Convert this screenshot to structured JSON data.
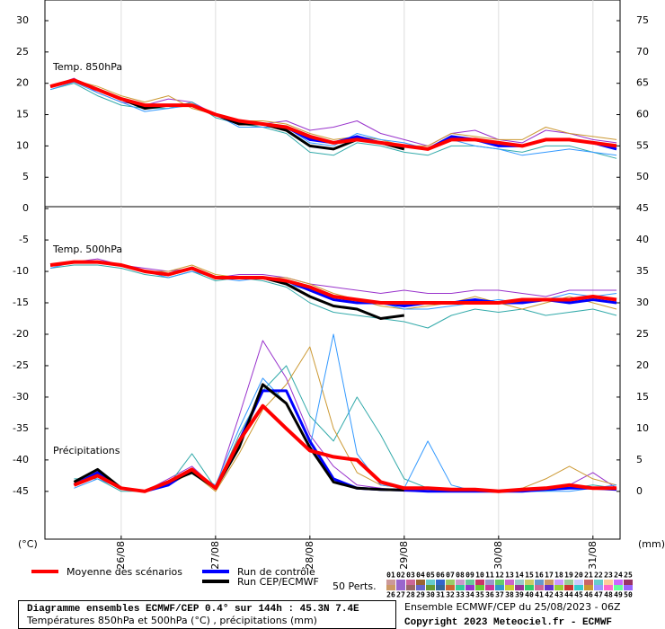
{
  "chart_data": {
    "type": "line",
    "x": [
      6,
      12,
      18,
      24,
      30,
      36,
      42,
      48,
      54,
      60,
      66,
      72,
      78,
      84,
      90,
      96,
      102,
      108,
      114,
      120,
      126,
      132,
      138,
      144,
      150
    ],
    "xlim": [
      4.6,
      150.9
    ],
    "xticks": [
      {
        "value": 24,
        "label": "26/08"
      },
      {
        "value": 48,
        "label": "27/08"
      },
      {
        "value": 72,
        "label": "28/08"
      },
      {
        "value": 96,
        "label": "29/08"
      },
      {
        "value": 120,
        "label": "30/08"
      },
      {
        "value": 144,
        "label": "31/08"
      }
    ],
    "y_unit": "(°C)",
    "y2_unit": "(mm)",
    "panels": [
      {
        "label": "Temp. 850hPa",
        "ylim": [
          0.3,
          33.3
        ],
        "yticks": [
          5,
          10,
          15,
          20,
          25,
          30
        ],
        "y2lim": [
          45.3,
          78.3
        ],
        "y2ticks": [
          50,
          55,
          60,
          65,
          70,
          75
        ],
        "series": [
          {
            "color": "#9933cc",
            "values": [
              19.5,
              20.8,
              18.5,
              17,
              16.5,
              17.5,
              17,
              15,
              13.5,
              13.5,
              14,
              12.5,
              13,
              14,
              12,
              11,
              10,
              12,
              12.5,
              11,
              10.5,
              12.5,
              12,
              11,
              10.5
            ]
          },
          {
            "color": "#33aaaa",
            "values": [
              19,
              20,
              18,
              16.5,
              16,
              16,
              17,
              14.5,
              13.5,
              13,
              12,
              9,
              8.5,
              10.5,
              10,
              9,
              8.5,
              10,
              10,
              9.5,
              9,
              10,
              10,
              9,
              8
            ]
          },
          {
            "color": "#cc9933",
            "values": [
              19.5,
              20.5,
              19.5,
              18,
              17,
              18,
              16,
              15,
              14,
              14,
              13.5,
              12,
              11,
              11.5,
              11,
              10,
              10,
              12,
              11.5,
              11,
              11,
              13,
              12,
              11.5,
              11
            ]
          },
          {
            "color": "#3399ff",
            "values": [
              19,
              20.2,
              18.5,
              17,
              15.5,
              16,
              16.5,
              15,
              13,
              13,
              13,
              10.5,
              10,
              12,
              11,
              10.5,
              9.5,
              11,
              10,
              9.5,
              8.5,
              9,
              9.5,
              9,
              8.5
            ]
          },
          {
            "name": "Run de contrôle",
            "color": "#0000ff",
            "width": 3,
            "values": [
              19.5,
              20.5,
              19,
              17.5,
              16.5,
              16.5,
              16.5,
              15,
              13.5,
              13.5,
              13,
              11,
              10.5,
              11.5,
              10.5,
              10,
              9.5,
              11.5,
              11,
              10,
              10,
              11,
              11,
              10.5,
              9.5
            ]
          },
          {
            "name": "Run CEP/ECMWF",
            "color": "#000000",
            "width": 3,
            "values": [
              19.5,
              20.5,
              19,
              17.5,
              16,
              16.5,
              16.5,
              15,
              13.5,
              13.5,
              12.5,
              10,
              9.5,
              11,
              10.5,
              9.5,
              null,
              null,
              null,
              null,
              null,
              null,
              null,
              null,
              null
            ]
          },
          {
            "name": "Moyenne des scénarios",
            "color": "#ff0000",
            "width": 4,
            "values": [
              19.5,
              20.5,
              19,
              17.5,
              16.5,
              16.5,
              16.5,
              15,
              14,
              13.5,
              13,
              11.5,
              10.5,
              11,
              10.5,
              10,
              9.5,
              11,
              11,
              10.5,
              10,
              11,
              11,
              10.5,
              10
            ]
          }
        ]
      },
      {
        "label": "Temp. 500hPa",
        "annotation": "Précipitations",
        "ylim": [
          -52.6,
          0.3
        ],
        "yticks": [
          -45,
          -40,
          -35,
          -30,
          -25,
          -20,
          -15,
          -10,
          -5,
          0
        ],
        "y2lim": [
          -7.6,
          45.3
        ],
        "y2ticks": [
          0,
          5,
          10,
          15,
          20,
          25,
          30,
          35,
          40,
          45
        ],
        "series": [
          {
            "color": "#9933cc",
            "values": [
              -9,
              -8.5,
              -8,
              -9,
              -9.5,
              -10,
              -9.5,
              -11,
              -10.5,
              -10.5,
              -11,
              -12,
              -12.5,
              -13,
              -13.5,
              -13,
              -13.5,
              -13.5,
              -13,
              -13,
              -13.5,
              -14,
              -13,
              -13,
              -13
            ]
          },
          {
            "color": "#33aaaa",
            "values": [
              -9.5,
              -9,
              -9,
              -9.5,
              -10.5,
              -11,
              -10,
              -11.5,
              -11,
              -11.5,
              -12.5,
              -15,
              -16.5,
              -17,
              -17.5,
              -18,
              -19,
              -17,
              -16,
              -16.5,
              -16,
              -17,
              -16.5,
              -16,
              -17
            ]
          },
          {
            "color": "#cc9933",
            "values": [
              -9,
              -8.5,
              -8.5,
              -9,
              -10,
              -10,
              -9,
              -10.5,
              -11,
              -11,
              -11,
              -12,
              -13.5,
              -14.5,
              -15.5,
              -16,
              -15.5,
              -15,
              -14,
              -15,
              -16,
              -15,
              -14,
              -15,
              -16
            ]
          },
          {
            "color": "#3399ff",
            "values": [
              -9.5,
              -8.5,
              -8.5,
              -9,
              -10,
              -11,
              -10,
              -11,
              -11.5,
              -11,
              -12,
              -13,
              -14,
              -15,
              -15,
              -16,
              -16,
              -15.5,
              -15,
              -14.5,
              -15,
              -14.5,
              -13.5,
              -14,
              -13.5
            ]
          },
          {
            "color": "#9933cc",
            "axis": "y2",
            "values": [
              null,
              1,
              3,
              0.5,
              0,
              2,
              4,
              0.5,
              12,
              24,
              18,
              9,
              4,
              1,
              0.5,
              0,
              0,
              0,
              0,
              0,
              0,
              0.5,
              1,
              3,
              0.5
            ]
          },
          {
            "color": "#33aaaa",
            "axis": "y2",
            "values": [
              null,
              2,
              2,
              0,
              0,
              1,
              6,
              0.5,
              9,
              16,
              20,
              12,
              8,
              15,
              9,
              2,
              0.5,
              0,
              0,
              0,
              0,
              0,
              0.5,
              1,
              0.5
            ]
          },
          {
            "color": "#cc9933",
            "axis": "y2",
            "values": [
              null,
              1.5,
              2.5,
              0.5,
              0,
              1,
              3,
              0,
              6,
              13,
              17,
              23,
              10,
              3,
              1,
              0.5,
              0,
              0,
              0,
              0,
              0.5,
              2,
              4,
              2,
              1
            ]
          },
          {
            "color": "#3399ff",
            "axis": "y2",
            "values": [
              null,
              0.5,
              2,
              0.5,
              0,
              1.5,
              3,
              1,
              10,
              18,
              14,
              7,
              25,
              6,
              1,
              0.5,
              8,
              1,
              0,
              0,
              0,
              0,
              0,
              0.5,
              1
            ]
          },
          {
            "name": "Run de contrôle",
            "color": "#0000ff",
            "width": 3,
            "values": [
              -9,
              -8.5,
              -8.5,
              -9,
              -10,
              -10.5,
              -9.5,
              -11,
              -11,
              -11,
              -11.5,
              -13,
              -14.5,
              -15,
              -15,
              -15.5,
              -15,
              -15,
              -14.5,
              -15,
              -15,
              -14.5,
              -15,
              -14.5,
              -15
            ]
          },
          {
            "name": "Run de contrôle",
            "color": "#0000ff",
            "width": 3,
            "axis": "y2",
            "values": [
              null,
              1,
              3,
              0.5,
              0,
              1,
              3.5,
              0.5,
              8,
              16,
              16,
              8,
              2,
              0.5,
              0.3,
              0.2,
              0,
              0,
              0,
              0,
              0,
              0.3,
              0.5,
              0.5,
              0.3
            ]
          },
          {
            "name": "Run CEP/ECMWF",
            "color": "#000000",
            "width": 3,
            "values": [
              -9,
              -8.5,
              -8.5,
              -9,
              -10,
              -10.5,
              -9.5,
              -11,
              -11,
              -11,
              -12,
              -14,
              -15.5,
              -16,
              -17.5,
              -17,
              null,
              null,
              null,
              null,
              null,
              null,
              null,
              null,
              null
            ]
          },
          {
            "name": "Run CEP/ECMWF",
            "color": "#000000",
            "width": 3,
            "axis": "y2",
            "values": [
              null,
              1.5,
              3.5,
              0.5,
              0,
              1.5,
              3,
              0.5,
              7,
              17,
              14,
              7,
              1.5,
              0.5,
              0.3,
              0.2,
              null,
              null,
              null,
              null,
              null,
              null,
              null,
              null,
              null
            ]
          },
          {
            "name": "Moyenne des scénarios",
            "color": "#ff0000",
            "width": 4,
            "values": [
              -9,
              -8.5,
              -8.5,
              -9,
              -10,
              -10.5,
              -9.5,
              -11,
              -11,
              -11,
              -11.5,
              -12.5,
              -14,
              -14.5,
              -15,
              -15,
              -15,
              -15,
              -15,
              -15,
              -14.5,
              -14.5,
              -14.5,
              -14,
              -14.5
            ]
          },
          {
            "name": "Moyenne des scénarios",
            "color": "#ff0000",
            "width": 4,
            "axis": "y2",
            "values": [
              null,
              1,
              2.5,
              0.5,
              0,
              1.5,
              3.5,
              0.5,
              8,
              13.6,
              10,
              6.5,
              5.5,
              5,
              1.5,
              0.5,
              0.5,
              0.3,
              0.3,
              0,
              0.3,
              0.5,
              1,
              0.5,
              0.5
            ]
          }
        ]
      }
    ],
    "perturbations_label": "50 Perts.",
    "perturbations": [
      {
        "label": "01",
        "color": "#cc9999"
      },
      {
        "label": "02",
        "color": "#9966cc"
      },
      {
        "label": "03",
        "color": "#cc6699"
      },
      {
        "label": "04",
        "color": "#996633"
      },
      {
        "label": "05",
        "color": "#66cccc"
      },
      {
        "label": "06",
        "color": "#3366cc"
      },
      {
        "label": "07",
        "color": "#99cc66"
      },
      {
        "label": "08",
        "color": "#cc99cc"
      },
      {
        "label": "09",
        "color": "#66cc99"
      },
      {
        "label": "10",
        "color": "#cc3366"
      },
      {
        "label": "11",
        "color": "#9999cc"
      },
      {
        "label": "12",
        "color": "#66cc66"
      },
      {
        "label": "13",
        "color": "#cc66cc"
      },
      {
        "label": "14",
        "color": "#99cccc"
      },
      {
        "label": "15",
        "color": "#cccc66"
      },
      {
        "label": "16",
        "color": "#6699cc"
      },
      {
        "label": "17",
        "color": "#cc9966"
      },
      {
        "label": "18",
        "color": "#cc99ff"
      },
      {
        "label": "19",
        "color": "#99cc99"
      },
      {
        "label": "20",
        "color": "#ccccff"
      },
      {
        "label": "21",
        "color": "#cc6666"
      },
      {
        "label": "22",
        "color": "#66cccc"
      },
      {
        "label": "23",
        "color": "#ffcc99"
      },
      {
        "label": "24",
        "color": "#cc66ff"
      },
      {
        "label": "25",
        "color": "#993366"
      },
      {
        "label": "26",
        "color": "#cc9966"
      },
      {
        "label": "27",
        "color": "#9966cc"
      },
      {
        "label": "28",
        "color": "#996666"
      },
      {
        "label": "29",
        "color": "#6666cc"
      },
      {
        "label": "30",
        "color": "#669933"
      },
      {
        "label": "31",
        "color": "#336699"
      },
      {
        "label": "32",
        "color": "#cc6633"
      },
      {
        "label": "33",
        "color": "#33cc99"
      },
      {
        "label": "34",
        "color": "#9933cc"
      },
      {
        "label": "35",
        "color": "#66cc33"
      },
      {
        "label": "36",
        "color": "#cc3399"
      },
      {
        "label": "37",
        "color": "#3399cc"
      },
      {
        "label": "38",
        "color": "#cccc33"
      },
      {
        "label": "39",
        "color": "#993399"
      },
      {
        "label": "40",
        "color": "#33cc66"
      },
      {
        "label": "41",
        "color": "#cc6699"
      },
      {
        "label": "42",
        "color": "#6633cc"
      },
      {
        "label": "43",
        "color": "#99cc33"
      },
      {
        "label": "44",
        "color": "#cc3333"
      },
      {
        "label": "45",
        "color": "#33cccc"
      },
      {
        "label": "46",
        "color": "#cc9933"
      },
      {
        "label": "47",
        "color": "#9999ff"
      },
      {
        "label": "48",
        "color": "#ff66cc"
      },
      {
        "label": "49",
        "color": "#66ff99"
      },
      {
        "label": "50",
        "color": "#9966ff"
      }
    ],
    "title": "Diagramme ensembles ECMWF/CEP 0.4° sur 144h : 45.3N 7.4E",
    "subtitle": "Températures 850hPa et 500hPa (°C) , précipitations (mm)",
    "run_info": "Ensemble ECMWF/CEP du 25/08/2023 - 06Z",
    "copyright": "Copyright 2023 Meteociel.fr - ECMWF"
  }
}
